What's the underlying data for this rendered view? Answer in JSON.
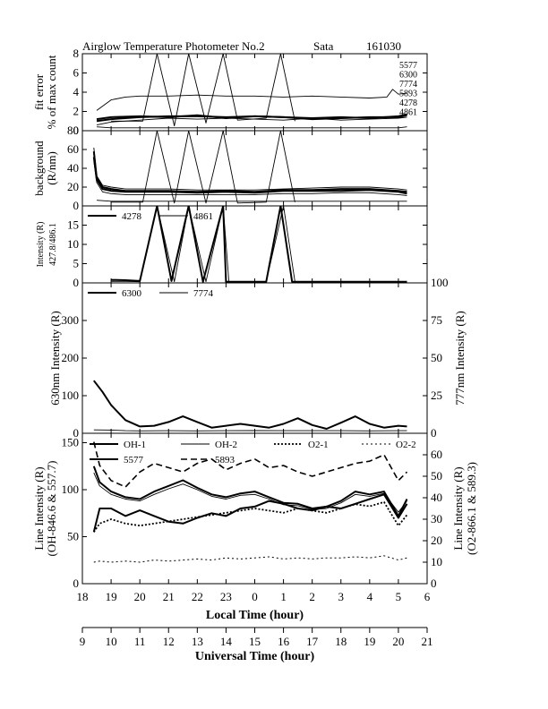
{
  "title": {
    "instrument": "Airglow Temperature Photometer No.2",
    "site": "Sata",
    "date": "161030"
  },
  "chart_data": [
    {
      "type": "line",
      "panel": "fit-error",
      "ylabel_lines": [
        "fit error",
        "% of max count"
      ],
      "ylim": [
        0,
        8
      ],
      "yticks": [
        0,
        2,
        4,
        6,
        8
      ],
      "labels": [
        "5577",
        "6300",
        "7774",
        "5893",
        "4278",
        "4861"
      ],
      "series": [
        {
          "name": "5577",
          "style": "thin",
          "x": [
            18.5,
            19,
            19.5,
            20,
            21,
            22,
            23,
            24,
            25,
            26,
            27,
            28,
            28.6,
            28.8,
            29,
            29.3
          ],
          "y": [
            2.1,
            3.2,
            3.5,
            3.6,
            3.6,
            3.7,
            3.6,
            3.6,
            3.5,
            3.6,
            3.5,
            3.4,
            3.5,
            4.3,
            3.8,
            3.9
          ]
        },
        {
          "name": "6300",
          "style": "thick",
          "x": [
            18.5,
            19,
            20,
            21,
            22,
            23,
            24,
            25,
            26,
            27,
            28,
            29,
            29.3
          ],
          "y": [
            1.0,
            1.2,
            1.4,
            1.5,
            1.5,
            1.4,
            1.5,
            1.4,
            1.3,
            1.4,
            1.3,
            1.5,
            1.7
          ]
        },
        {
          "name": "7774",
          "style": "thin",
          "x": [
            18.5,
            19,
            20,
            21,
            22,
            23,
            24,
            25,
            26,
            27,
            28,
            29,
            29.3
          ],
          "y": [
            0.6,
            0.9,
            1.1,
            1.3,
            1.2,
            1.3,
            1.2,
            1.1,
            1.3,
            1.1,
            1.2,
            1.3,
            1.4
          ]
        },
        {
          "name": "5893",
          "style": "thick",
          "x": [
            18.5,
            19,
            20,
            21,
            22,
            23,
            24,
            25,
            26,
            27,
            28,
            29,
            29.3
          ],
          "y": [
            1.2,
            1.4,
            1.5,
            1.4,
            1.6,
            1.3,
            1.5,
            1.4,
            1.2,
            1.3,
            1.4,
            1.4,
            1.6
          ]
        },
        {
          "name": "4278",
          "style": "thin",
          "x": [
            19,
            20.1,
            20.6,
            21.2,
            21.7,
            22.3,
            22.9,
            23.4,
            24.4,
            24.9,
            25.4
          ],
          "y": [
            1.0,
            1.0,
            8.0,
            0.5,
            8.0,
            0.8,
            8.0,
            1.1,
            1.3,
            8.0,
            1.0
          ]
        },
        {
          "name": "4861",
          "style": "thin",
          "x": [
            18.5,
            19,
            20,
            21,
            22,
            23,
            24,
            25,
            26,
            27,
            28,
            29,
            29.3
          ],
          "y": [
            0.4,
            0.3,
            0.3,
            0.3,
            0.3,
            0.3,
            0.3,
            0.3,
            0.3,
            0.3,
            0.3,
            0.3,
            0.4
          ]
        }
      ]
    },
    {
      "type": "line",
      "panel": "background",
      "ylabel_lines": [
        "background",
        "(R/nm)"
      ],
      "ylim": [
        0,
        80
      ],
      "yticks": [
        0,
        20,
        40,
        60,
        80
      ],
      "series": [
        {
          "name": "6300",
          "style": "thick",
          "x": [
            18.4,
            18.5,
            18.7,
            19,
            19.5,
            20,
            21,
            22,
            23,
            24,
            25,
            26,
            27,
            28,
            29,
            29.3
          ],
          "y": [
            58,
            30,
            20,
            18,
            16,
            16,
            16,
            15,
            16,
            15,
            17,
            17,
            18,
            18,
            16,
            15
          ]
        },
        {
          "name": "5577",
          "style": "thick",
          "x": [
            18.4,
            18.5,
            18.7,
            19,
            19.5,
            20,
            21,
            22,
            23,
            24,
            25,
            26,
            27,
            28,
            29,
            29.3
          ],
          "y": [
            52,
            28,
            18,
            16,
            15,
            15,
            15,
            14,
            15,
            14,
            16,
            16,
            16,
            17,
            15,
            13
          ]
        },
        {
          "name": "5893",
          "style": "thin",
          "x": [
            18.4,
            18.5,
            18.7,
            19,
            19.5,
            20,
            21,
            22,
            23,
            24,
            25,
            26,
            27,
            28,
            29,
            29.3
          ],
          "y": [
            62,
            32,
            22,
            20,
            18,
            18,
            18,
            17,
            17,
            17,
            18,
            19,
            20,
            20,
            18,
            17
          ]
        },
        {
          "name": "7774",
          "style": "thin",
          "x": [
            18.4,
            18.5,
            18.7,
            19,
            19.5,
            20,
            21,
            22,
            23,
            24,
            25,
            26,
            27,
            28,
            29,
            29.3
          ],
          "y": [
            48,
            25,
            15,
            13,
            12,
            12,
            12,
            12,
            12,
            12,
            13,
            13,
            14,
            14,
            12,
            11
          ]
        },
        {
          "name": "4278",
          "style": "thin",
          "x": [
            19,
            20.1,
            20.6,
            21.2,
            21.7,
            22.3,
            22.9,
            23.4,
            24.4,
            24.9,
            25.4
          ],
          "y": [
            4,
            4,
            80,
            3,
            80,
            3,
            80,
            3,
            4,
            80,
            4
          ]
        },
        {
          "name": "4861",
          "style": "thin",
          "x": [
            18.5,
            19,
            20,
            21,
            22,
            23,
            24,
            25,
            26,
            27,
            28,
            29,
            29.3
          ],
          "y": [
            6,
            5,
            5,
            5,
            5,
            5,
            5,
            5,
            5,
            5,
            5,
            5,
            5
          ]
        }
      ]
    },
    {
      "type": "line",
      "panel": "intensity-4278",
      "ylabel_lines": [
        "Intensity (R)",
        "427.8/486.1"
      ],
      "ylim": [
        0,
        20
      ],
      "yticks": [
        0,
        5,
        10,
        15
      ],
      "legend": [
        {
          "name": "4278",
          "style": "thick"
        },
        {
          "name": "4861",
          "style": "thin"
        }
      ],
      "series": [
        {
          "name": "4278",
          "style": "thick",
          "x": [
            19,
            19.5,
            20,
            20.6,
            21.1,
            21.7,
            22.2,
            22.9,
            23,
            24,
            24.4,
            24.9,
            25.3,
            29.3
          ],
          "y": [
            0.8,
            0.7,
            0.5,
            20,
            0.5,
            20,
            0.3,
            20,
            0.3,
            0.3,
            0.3,
            20,
            0.3,
            0.3
          ]
        },
        {
          "name": "4861",
          "style": "thin",
          "x": [
            19,
            19.5,
            20,
            20.6,
            21.2,
            21.7,
            22.3,
            22.9,
            23.1,
            24,
            24.4,
            25,
            25.4,
            29.3
          ],
          "y": [
            0.4,
            0.4,
            0.3,
            20,
            0.3,
            20,
            0.3,
            20,
            0.3,
            0.3,
            0.3,
            20,
            0.3,
            0.3
          ]
        }
      ]
    },
    {
      "type": "line",
      "panel": "intensity-630-777",
      "ylabel": "630nm Intensity (R)",
      "ylabel_right": "777nm Intensity (R)",
      "ylim": [
        0,
        400
      ],
      "ylim_right": [
        0,
        100
      ],
      "yticks": [
        0,
        100,
        200,
        300
      ],
      "yticks_right": [
        0,
        25,
        50,
        75,
        100
      ],
      "legend": [
        {
          "name": "6300",
          "style": "thick"
        },
        {
          "name": "7774",
          "style": "thin"
        }
      ],
      "series": [
        {
          "name": "6300",
          "style": "thick",
          "x": [
            18.4,
            18.7,
            19,
            19.5,
            20,
            20.5,
            21,
            21.5,
            22,
            22.5,
            23,
            23.5,
            24,
            24.5,
            25,
            25.5,
            26,
            26.5,
            27,
            27.5,
            28,
            28.5,
            29,
            29.3
          ],
          "y": [
            140,
            110,
            75,
            35,
            18,
            20,
            30,
            45,
            30,
            15,
            20,
            25,
            20,
            15,
            25,
            40,
            22,
            12,
            28,
            45,
            25,
            15,
            20,
            18
          ]
        },
        {
          "name": "7774",
          "style": "thin",
          "x": [
            18.4,
            19,
            19.5,
            20,
            21,
            22,
            23,
            24,
            25,
            26,
            27,
            28,
            29,
            29.3
          ],
          "y": [
            9,
            8.5,
            7,
            6.5,
            7,
            6.5,
            7,
            7.2,
            6.8,
            7,
            6.8,
            6.5,
            7,
            6.8
          ]
        }
      ]
    },
    {
      "type": "line",
      "panel": "line-intensity",
      "ylabel_lines": [
        "Line Intensity (R)",
        "(OH-846.6 & 557.7)"
      ],
      "ylabel_right_lines": [
        "Line Intensity (R)",
        "(O2-866.1 & 589.3)"
      ],
      "ylim": [
        0,
        160
      ],
      "ylim_right": [
        0,
        70
      ],
      "yticks": [
        0,
        50,
        100,
        150
      ],
      "yticks_right": [
        0,
        10,
        20,
        30,
        40,
        50,
        60
      ],
      "legend": [
        {
          "name": "OH-1",
          "style": "thick"
        },
        {
          "name": "OH-2",
          "style": "thin"
        },
        {
          "name": "O2-1",
          "style": "dotted-thick"
        },
        {
          "name": "O2-2",
          "style": "dotted-thin"
        },
        {
          "name": "5577",
          "style": "thick"
        },
        {
          "name": "5893",
          "style": "dashed"
        }
      ],
      "series": [
        {
          "name": "OH-1",
          "style": "thick",
          "axis": "left",
          "x": [
            18.4,
            18.6,
            19,
            19.5,
            20,
            20.5,
            21,
            21.5,
            22,
            22.5,
            23,
            23.5,
            24,
            24.5,
            25,
            25.5,
            26,
            26.5,
            27,
            27.5,
            28,
            28.5,
            29,
            29.3
          ],
          "y": [
            125,
            108,
            98,
            92,
            90,
            98,
            104,
            110,
            102,
            95,
            92,
            96,
            98,
            92,
            86,
            85,
            80,
            82,
            88,
            98,
            95,
            98,
            72,
            90
          ]
        },
        {
          "name": "OH-2",
          "style": "thin",
          "axis": "left",
          "x": [
            18.4,
            18.6,
            19,
            19.5,
            20,
            20.5,
            21,
            21.5,
            22,
            22.5,
            23,
            23.5,
            24,
            24.5,
            25,
            25.5,
            26,
            26.5,
            27,
            27.5,
            28,
            28.5,
            29,
            29.3
          ],
          "y": [
            118,
            104,
            95,
            90,
            88,
            95,
            101,
            106,
            100,
            93,
            90,
            94,
            95,
            90,
            84,
            83,
            79,
            80,
            86,
            95,
            93,
            96,
            76,
            88
          ]
        },
        {
          "name": "5577",
          "style": "thick",
          "axis": "left",
          "x": [
            18.4,
            18.6,
            19,
            19.5,
            20,
            20.5,
            21,
            21.5,
            22,
            22.5,
            23,
            23.5,
            24,
            24.5,
            25,
            25.5,
            26,
            26.5,
            27,
            27.5,
            28,
            28.5,
            29,
            29.3
          ],
          "y": [
            55,
            80,
            80,
            72,
            78,
            72,
            66,
            64,
            70,
            75,
            72,
            80,
            82,
            88,
            85,
            80,
            78,
            82,
            80,
            85,
            90,
            95,
            70,
            85
          ]
        },
        {
          "name": "5893",
          "style": "dashed",
          "axis": "right",
          "x": [
            18.4,
            18.6,
            19,
            19.5,
            20,
            20.5,
            21,
            21.5,
            22,
            22.5,
            23,
            23.5,
            24,
            24.5,
            25,
            25.5,
            26,
            26.5,
            27,
            27.5,
            28,
            28.5,
            29,
            29.3
          ],
          "y": [
            66,
            55,
            48,
            45,
            52,
            56,
            54,
            52,
            56,
            58,
            53,
            56,
            58,
            54,
            55,
            52,
            50,
            52,
            54,
            56,
            57,
            60,
            48,
            52
          ]
        },
        {
          "name": "O2-1",
          "style": "dotted-thick",
          "axis": "right",
          "x": [
            18.4,
            18.6,
            19,
            19.5,
            20,
            20.5,
            21,
            21.5,
            22,
            22.5,
            23,
            23.5,
            24,
            24.5,
            25,
            25.5,
            26,
            26.5,
            27,
            27.5,
            28,
            28.5,
            29,
            29.3
          ],
          "y": [
            24,
            28,
            30,
            28,
            27,
            28,
            29,
            30,
            31,
            32,
            33,
            34,
            35,
            34,
            33,
            35,
            34,
            33,
            35,
            37,
            36,
            38,
            27,
            32
          ]
        },
        {
          "name": "O2-2",
          "style": "dotted-thin",
          "axis": "right",
          "x": [
            18.4,
            18.6,
            19,
            19.5,
            20,
            20.5,
            21,
            21.5,
            22,
            22.5,
            23,
            23.5,
            24,
            24.5,
            25,
            25.5,
            26,
            26.5,
            27,
            27.5,
            28,
            28.5,
            29,
            29.3
          ],
          "y": [
            10,
            10.5,
            10,
            10.5,
            10,
            11,
            10.5,
            11,
            11.5,
            11,
            12,
            11.5,
            12,
            12.5,
            11.5,
            12,
            11.5,
            12,
            12,
            12.5,
            12,
            13,
            11,
            12
          ]
        }
      ]
    }
  ],
  "xaxis_local": {
    "label": "Local Time (hour)",
    "range": [
      18,
      30
    ],
    "ticks": [
      18,
      19,
      20,
      21,
      22,
      23,
      24,
      25,
      26,
      27,
      28,
      29,
      30
    ],
    "ticklabels": [
      "18",
      "19",
      "20",
      "21",
      "22",
      "23",
      "0",
      "1",
      "2",
      "3",
      "4",
      "5",
      "6"
    ]
  },
  "xaxis_ut": {
    "label": "Universal Time (hour)",
    "range": [
      9,
      21
    ],
    "ticks": [
      9,
      10,
      11,
      12,
      13,
      14,
      15,
      16,
      17,
      18,
      19,
      20,
      21
    ],
    "ticklabels": [
      "9",
      "10",
      "11",
      "12",
      "13",
      "14",
      "15",
      "16",
      "17",
      "18",
      "19",
      "20",
      "21"
    ]
  }
}
